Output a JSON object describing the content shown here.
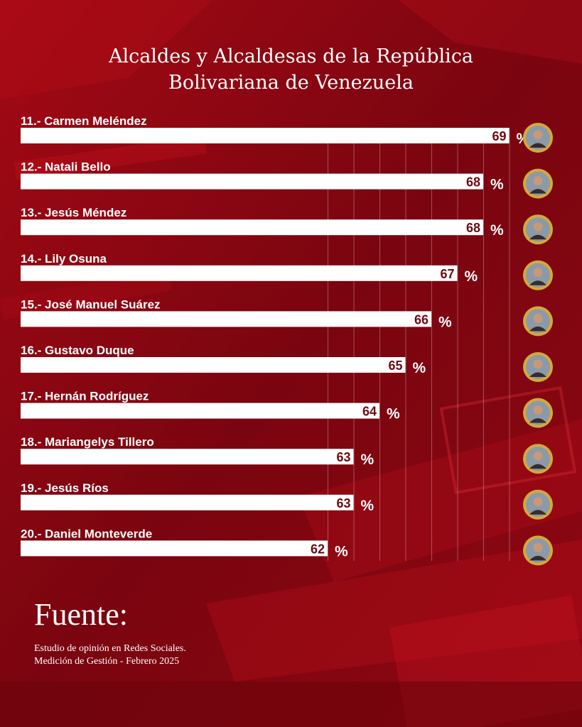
{
  "title_lines": [
    "Alcaldes y Alcaldesas de la República",
    "Bolivariana de Venezuela"
  ],
  "chart_data": {
    "type": "bar",
    "orientation": "horizontal",
    "title": "Alcaldes y Alcaldesas de la República Bolivariana de Venezuela",
    "categories": [
      "11.- Carmen Meléndez",
      "12.- Natali Bello",
      "13.- Jesús Méndez",
      "14.- Lily Osuna",
      "15.- José Manuel Suárez",
      "16.- Gustavo Duque",
      "17.- Hernán Rodríguez",
      "18.- Mariangelys Tillero",
      "19.- Jesús Ríos",
      "20.- Daniel Monteverde"
    ],
    "values": [
      69,
      68,
      68,
      67,
      66,
      65,
      64,
      63,
      63,
      62
    ],
    "unit": "%",
    "grid": true,
    "colors": {
      "bar": "#ffffff",
      "value_text": "#6e0a12",
      "avatar_ring": "#d4a93a"
    }
  },
  "source": {
    "title": "Fuente:",
    "lines": [
      "Estudio de opinión en Redes Sociales.",
      "Medición de Gestión - Febrero 2025"
    ]
  },
  "colors": {
    "background": "#8c0610",
    "accent": "#c4101c"
  }
}
